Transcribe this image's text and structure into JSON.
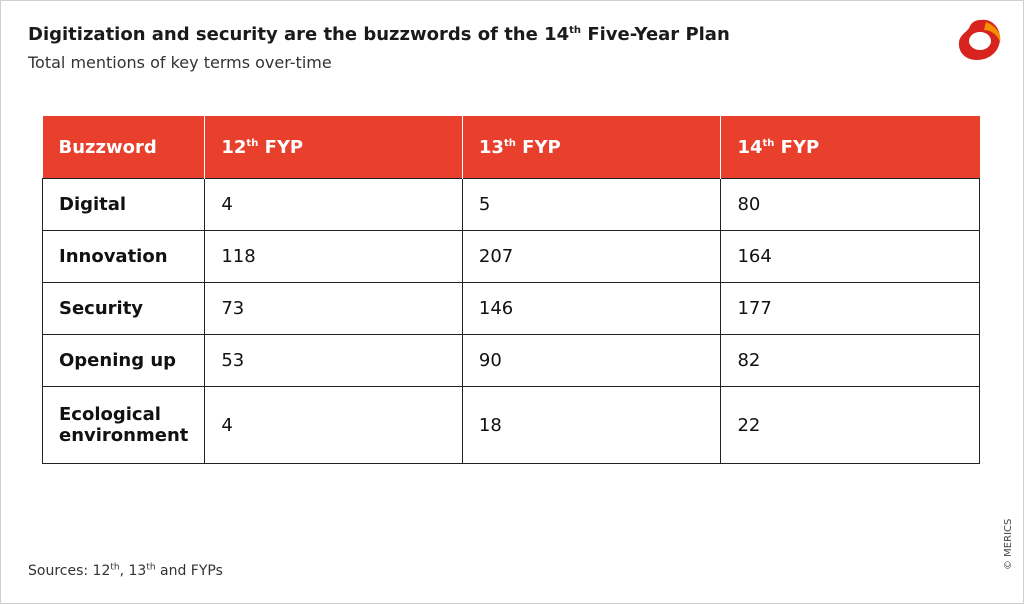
{
  "header": {
    "title_main": "Digitization and security are the buzzwords of the 14",
    "title_sup": "th",
    "title_end": " Five-Year Plan",
    "subtitle": "Total mentions of key terms over-time"
  },
  "chart_data": {
    "type": "table",
    "columns": [
      {
        "main": "Buzzword",
        "sup": "",
        "end": ""
      },
      {
        "main": "12",
        "sup": "th",
        "end": " FYP"
      },
      {
        "main": "13",
        "sup": "th",
        "end": " FYP"
      },
      {
        "main": "14",
        "sup": "th",
        "end": " FYP"
      }
    ],
    "rows": [
      {
        "label": "Digital",
        "values": [
          "4",
          "5",
          "80"
        ]
      },
      {
        "label": "Innovation",
        "values": [
          "118",
          "207",
          "164"
        ]
      },
      {
        "label": "Security",
        "values": [
          "73",
          "146",
          "177"
        ]
      },
      {
        "label": "Opening up",
        "values": [
          "53",
          "90",
          "82"
        ]
      },
      {
        "label": "Ecological environment",
        "values": [
          "4",
          "18",
          "22"
        ]
      }
    ]
  },
  "footer": {
    "source_parts": [
      "Sources: 12",
      "th",
      ", 13",
      "th",
      " and FYPs"
    ],
    "copyright": "© MERICS"
  },
  "colors": {
    "accent": "#e8402c",
    "logo_red": "#d9231e",
    "logo_orange": "#f39200"
  }
}
